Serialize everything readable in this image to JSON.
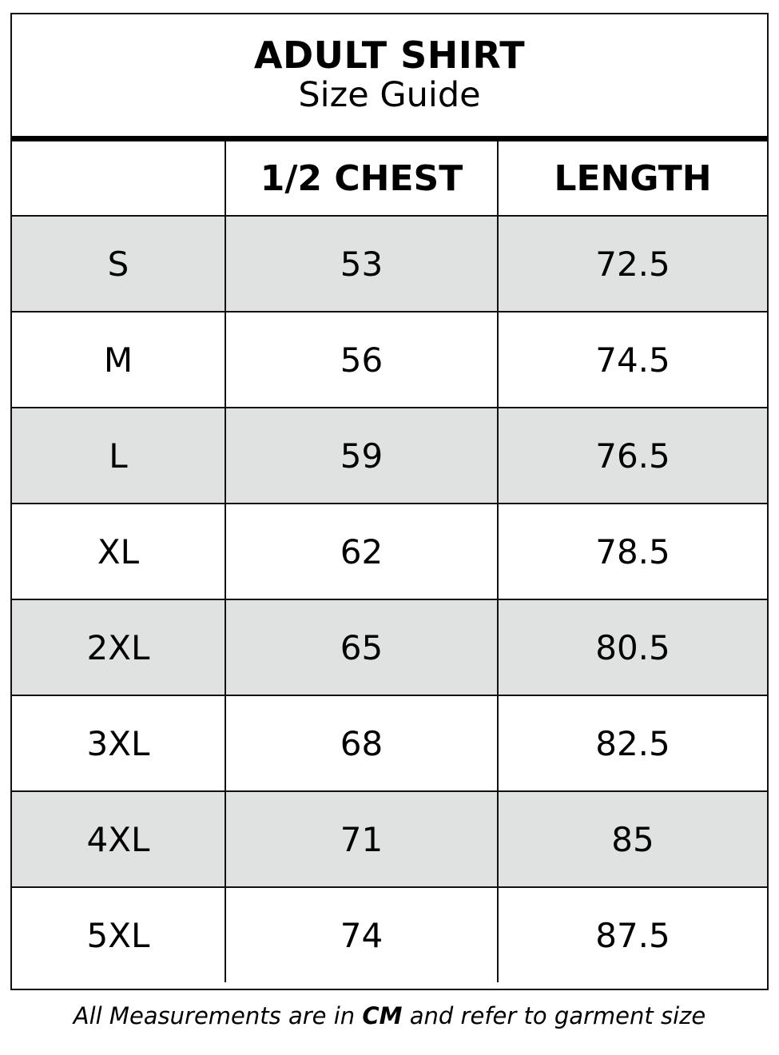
{
  "title": "ADULT SHIRT",
  "subtitle": "Size Guide",
  "table": {
    "headers": [
      "",
      "1/2 CHEST",
      "LENGTH"
    ],
    "rows": [
      {
        "size": "S",
        "chest": "53",
        "length": "72.5"
      },
      {
        "size": "M",
        "chest": "56",
        "length": "74.5"
      },
      {
        "size": "L",
        "chest": "59",
        "length": "76.5"
      },
      {
        "size": "XL",
        "chest": "62",
        "length": "78.5"
      },
      {
        "size": "2XL",
        "chest": "65",
        "length": "80.5"
      },
      {
        "size": "3XL",
        "chest": "68",
        "length": "82.5"
      },
      {
        "size": "4XL",
        "chest": "71",
        "length": "85"
      },
      {
        "size": "5XL",
        "chest": "74",
        "length": "87.5"
      }
    ]
  },
  "footer": {
    "before": "All Measurements are in ",
    "unit": "CM",
    "after": " and refer to garment size"
  },
  "colors": {
    "stripe": "#e0e2e1",
    "border": "#111111"
  }
}
